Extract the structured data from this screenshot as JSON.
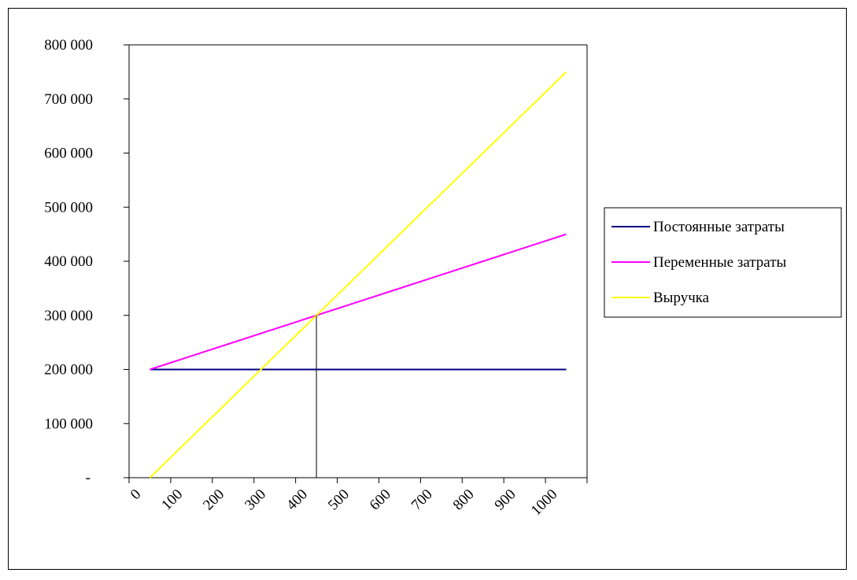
{
  "chart_data": {
    "type": "line",
    "categories": [
      "0",
      "100",
      "200",
      "300",
      "400",
      "500",
      "600",
      "700",
      "800",
      "900",
      "1000"
    ],
    "series": [
      {
        "name": "Постоянные затраты",
        "color": "#000080",
        "values": [
          200000,
          200000,
          200000,
          200000,
          200000,
          200000,
          200000,
          200000,
          200000,
          200000,
          200000
        ]
      },
      {
        "name": "Переменные затраты",
        "color": "#ff00ff",
        "values": [
          200000,
          225000,
          250000,
          275000,
          300000,
          325000,
          350000,
          375000,
          400000,
          425000,
          450000
        ]
      },
      {
        "name": "Выручка",
        "color": "#ffff00",
        "values": [
          0,
          75000,
          150000,
          225000,
          300000,
          375000,
          450000,
          525000,
          600000,
          675000,
          750000
        ]
      }
    ],
    "y_ticks": [
      {
        "value": 0,
        "label": "-"
      },
      {
        "value": 100000,
        "label": "100 000"
      },
      {
        "value": 200000,
        "label": "200 000"
      },
      {
        "value": 300000,
        "label": "300 000"
      },
      {
        "value": 400000,
        "label": "400 000"
      },
      {
        "value": 500000,
        "label": "500 000"
      },
      {
        "value": 600000,
        "label": "600 000"
      },
      {
        "value": 700000,
        "label": "700 000"
      },
      {
        "value": 800000,
        "label": "800 000"
      }
    ],
    "ylim": [
      0,
      800000
    ],
    "break_even": {
      "x": 400,
      "y": 300000
    },
    "grid": false,
    "legend_position": "right"
  }
}
